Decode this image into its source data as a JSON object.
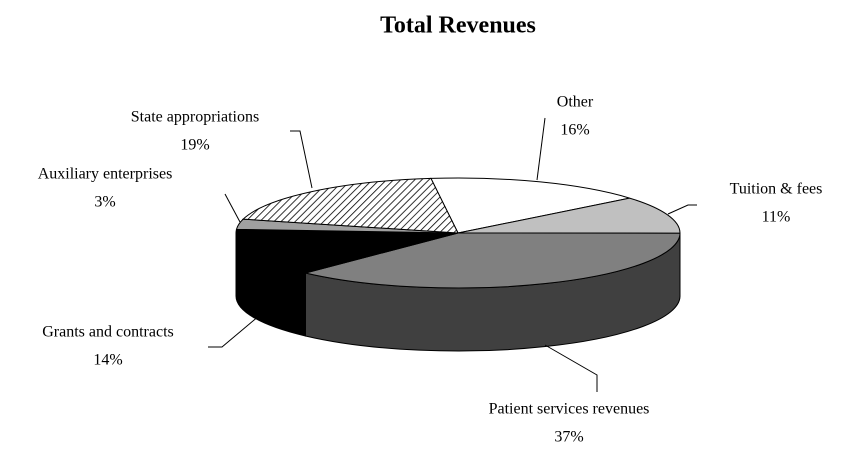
{
  "chart_data": {
    "type": "pie3d",
    "title": "Total Revenues",
    "categories": [
      "Other",
      "Tuition & fees",
      "Patient services revenues",
      "Grants and contracts",
      "Auxiliary enterprises",
      "State appropriations"
    ],
    "values": [
      16,
      11,
      37,
      14,
      3,
      19
    ],
    "value_labels": [
      "16%",
      "11%",
      "37%",
      "14%",
      "3%",
      "19%"
    ],
    "colors": [
      "#ffffff",
      "#c0c0c0",
      "#808080",
      "#000000",
      "#a0a0a0",
      "#ffffff"
    ],
    "patterns": [
      "solid",
      "solid",
      "solid",
      "solid",
      "solid",
      "diagonal-hatch"
    ]
  }
}
